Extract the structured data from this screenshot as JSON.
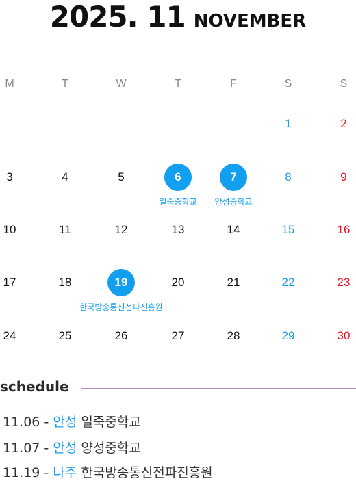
{
  "header": {
    "year_month": "2025. 11",
    "month_name": "NOVEMBER"
  },
  "weekdays": [
    "M",
    "T",
    "W",
    "T",
    "F",
    "S",
    "S"
  ],
  "weeks": [
    [
      null,
      null,
      null,
      null,
      null,
      "1",
      "2"
    ],
    [
      "3",
      "4",
      "5",
      "6",
      "7",
      "8",
      "9"
    ],
    [
      "10",
      "11",
      "12",
      "13",
      "14",
      "15",
      "16"
    ],
    [
      "17",
      "18",
      "19",
      "20",
      "21",
      "22",
      "23"
    ],
    [
      "24",
      "25",
      "26",
      "27",
      "28",
      "29",
      "30"
    ]
  ],
  "events": [
    {
      "day": "6",
      "label": "일죽중학교"
    },
    {
      "day": "7",
      "label": "양성중학교"
    },
    {
      "day": "19",
      "label": "한국방송통신전파진흥원"
    }
  ],
  "colors": {
    "accent": "#139ff0",
    "saturday": "#1e9be6",
    "sunday": "#e8101c",
    "rule": "#b089c9"
  },
  "schedule": {
    "heading": "schedule",
    "items": [
      {
        "date": "11.06 -",
        "city": "안성",
        "place": "일죽중학교"
      },
      {
        "date": "11.07 -",
        "city": "안성",
        "place": "양성중학교"
      },
      {
        "date": "11.19 -",
        "city": "나주",
        "place": "한국방송통신전파진흥원"
      }
    ]
  }
}
